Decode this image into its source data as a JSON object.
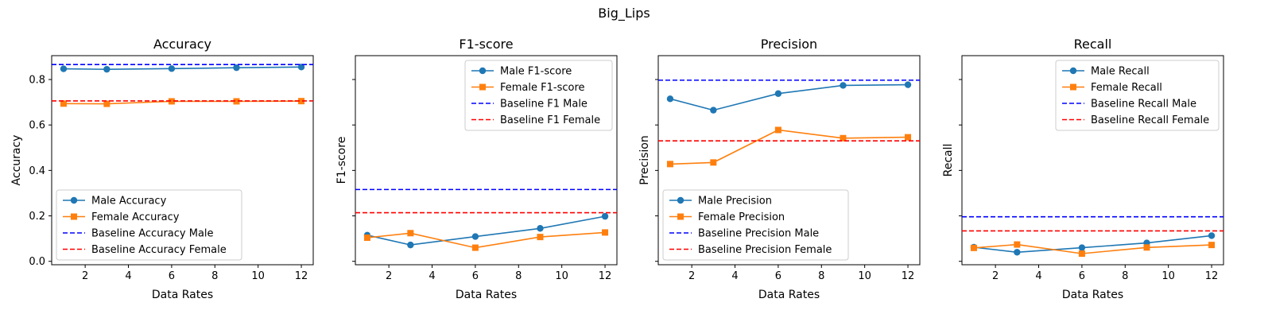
{
  "figure": {
    "title": "Big_Lips"
  },
  "chart_data": [
    {
      "type": "line",
      "title": "Accuracy",
      "xlabel": "Data Rates",
      "ylabel": "Accuracy",
      "xlim": [
        0.45,
        12.55
      ],
      "ylim": [
        -0.015,
        0.905
      ],
      "xticks": [
        2,
        4,
        6,
        8,
        10,
        12
      ],
      "yticks": [
        0.0,
        0.2,
        0.4,
        0.6,
        0.8
      ],
      "ytick_labels_visible": true,
      "legend_position": "lower-left",
      "x": [
        1,
        3,
        6,
        9,
        12
      ],
      "series": [
        {
          "name": "Male Accuracy",
          "values": [
            0.847,
            0.845,
            0.848,
            0.852,
            0.855
          ],
          "style": "line",
          "marker": "circle",
          "color": "#1f77b4"
        },
        {
          "name": "Female Accuracy",
          "values": [
            0.694,
            0.693,
            0.704,
            0.704,
            0.705
          ],
          "style": "line",
          "marker": "square",
          "color": "#ff7f0e"
        },
        {
          "name": "Baseline Accuracy Male",
          "value": 0.866,
          "style": "hline",
          "color": "#0000ff"
        },
        {
          "name": "Baseline Accuracy Female",
          "value": 0.706,
          "style": "hline",
          "color": "#ff0000"
        }
      ]
    },
    {
      "type": "line",
      "title": "F1-score",
      "xlabel": "Data Rates",
      "ylabel": "F1-score",
      "xlim": [
        0.45,
        12.55
      ],
      "ylim": [
        -0.015,
        0.905
      ],
      "xticks": [
        2,
        4,
        6,
        8,
        10,
        12
      ],
      "yticks": [
        0.0,
        0.2,
        0.4,
        0.6,
        0.8
      ],
      "ytick_labels_visible": false,
      "legend_position": "upper-right",
      "x": [
        1,
        3,
        6,
        9,
        12
      ],
      "series": [
        {
          "name": "Male F1-score",
          "values": [
            0.115,
            0.072,
            0.109,
            0.145,
            0.198
          ],
          "style": "line",
          "marker": "circle",
          "color": "#1f77b4"
        },
        {
          "name": "Female F1-score",
          "values": [
            0.104,
            0.124,
            0.06,
            0.107,
            0.127
          ],
          "style": "line",
          "marker": "square",
          "color": "#ff7f0e"
        },
        {
          "name": "Baseline F1 Male",
          "value": 0.316,
          "style": "hline",
          "color": "#0000ff"
        },
        {
          "name": "Baseline F1 Female",
          "value": 0.214,
          "style": "hline",
          "color": "#ff0000"
        }
      ]
    },
    {
      "type": "line",
      "title": "Precision",
      "xlabel": "Data Rates",
      "ylabel": "Precision",
      "xlim": [
        0.45,
        12.55
      ],
      "ylim": [
        -0.015,
        0.905
      ],
      "xticks": [
        2,
        4,
        6,
        8,
        10,
        12
      ],
      "yticks": [
        0.0,
        0.2,
        0.4,
        0.6,
        0.8
      ],
      "ytick_labels_visible": false,
      "legend_position": "lower-left",
      "x": [
        1,
        3,
        6,
        9,
        12
      ],
      "series": [
        {
          "name": "Male Precision",
          "values": [
            0.715,
            0.665,
            0.738,
            0.774,
            0.777
          ],
          "style": "line",
          "marker": "circle",
          "color": "#1f77b4"
        },
        {
          "name": "Female Precision",
          "values": [
            0.428,
            0.435,
            0.578,
            0.542,
            0.546
          ],
          "style": "line",
          "marker": "square",
          "color": "#ff7f0e"
        },
        {
          "name": "Baseline Precision Male",
          "value": 0.797,
          "style": "hline",
          "color": "#0000ff"
        },
        {
          "name": "Baseline Precision Female",
          "value": 0.53,
          "style": "hline",
          "color": "#ff0000"
        }
      ]
    },
    {
      "type": "line",
      "title": "Recall",
      "xlabel": "Data Rates",
      "ylabel": "Recall",
      "xlim": [
        0.45,
        12.55
      ],
      "ylim": [
        -0.015,
        0.905
      ],
      "xticks": [
        2,
        4,
        6,
        8,
        10,
        12
      ],
      "yticks": [
        0.0,
        0.2,
        0.4,
        0.6,
        0.8
      ],
      "ytick_labels_visible": false,
      "legend_position": "upper-right",
      "x": [
        1,
        3,
        6,
        9,
        12
      ],
      "series": [
        {
          "name": "Male Recall",
          "values": [
            0.062,
            0.04,
            0.06,
            0.081,
            0.113
          ],
          "style": "line",
          "marker": "circle",
          "color": "#1f77b4"
        },
        {
          "name": "Female Recall",
          "values": [
            0.059,
            0.074,
            0.034,
            0.061,
            0.072
          ],
          "style": "line",
          "marker": "square",
          "color": "#ff7f0e"
        },
        {
          "name": "Baseline Recall Male",
          "value": 0.196,
          "style": "hline",
          "color": "#0000ff"
        },
        {
          "name": "Baseline Recall Female",
          "value": 0.134,
          "style": "hline",
          "color": "#ff0000"
        }
      ]
    }
  ]
}
